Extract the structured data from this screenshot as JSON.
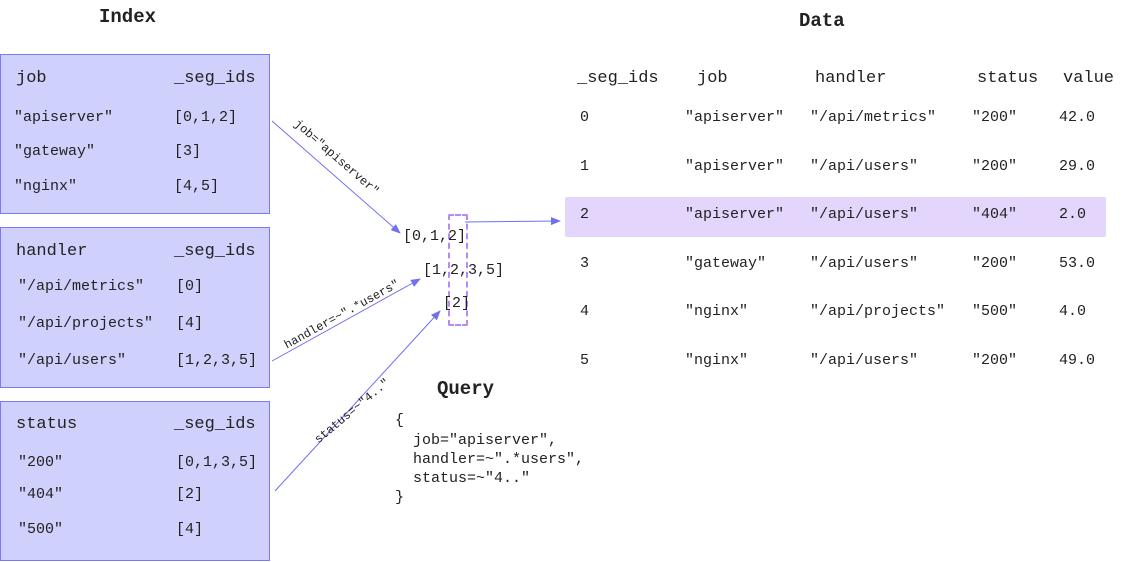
{
  "titles": {
    "index": "Index",
    "data": "Data",
    "query": "Query"
  },
  "index": [
    {
      "field": "job",
      "seg_header": "_seg_ids",
      "rows": [
        [
          "\"apiserver\"",
          "[0,1,2]"
        ],
        [
          "\"gateway\"",
          "[3]"
        ],
        [
          "\"nginx\"",
          "[4,5]"
        ]
      ]
    },
    {
      "field": "handler",
      "seg_header": "_seg_ids",
      "rows": [
        [
          "\"/api/metrics\"",
          "[0]"
        ],
        [
          "\"/api/projects\"",
          "[4]"
        ],
        [
          "\"/api/users\"",
          "[1,2,3,5]"
        ]
      ]
    },
    {
      "field": "status",
      "seg_header": "_seg_ids",
      "rows": [
        [
          "\"200\"",
          "[0,1,3,5]"
        ],
        [
          "\"404\"",
          "[2]"
        ],
        [
          "\"500\"",
          "[4]"
        ]
      ]
    }
  ],
  "arrow_labels": [
    "job=\"apiserver\"",
    "handler=~\".*users\"",
    "status=~\"4..\""
  ],
  "results": [
    "[0,1,2]",
    "[1,2,3,5]",
    "[2]"
  ],
  "query": {
    "open": "{",
    "lines": [
      "job=\"apiserver\",",
      "handler=~\".*users\",",
      "status=~\"4..\""
    ],
    "close": "}"
  },
  "data": {
    "headers": [
      "_seg_ids",
      "job",
      "handler",
      "status",
      "value"
    ],
    "rows": [
      [
        "0",
        "\"apiserver\"",
        "\"/api/metrics\"",
        "\"200\"",
        "42.0"
      ],
      [
        "1",
        "\"apiserver\"",
        "\"/api/users\"",
        "\"200\"",
        "29.0"
      ],
      [
        "2",
        "\"apiserver\"",
        "\"/api/users\"",
        "\"404\"",
        "2.0"
      ],
      [
        "3",
        "\"gateway\"",
        "\"/api/users\"",
        "\"200\"",
        "53.0"
      ],
      [
        "4",
        "\"nginx\"",
        "\"/api/projects\"",
        "\"500\"",
        "4.0"
      ],
      [
        "5",
        "\"nginx\"",
        "\"/api/users\"",
        "\"200\"",
        "49.0"
      ]
    ],
    "highlighted_row": 2
  },
  "colors": {
    "box_fill": "#d0d0fc",
    "box_border": "#7b7bf0",
    "arrow": "#7070f0",
    "highlight": "#e3d5fb",
    "dashed": "#b48cf2"
  }
}
